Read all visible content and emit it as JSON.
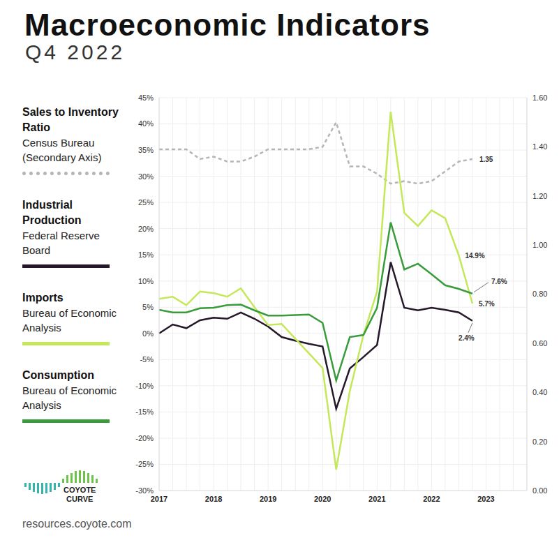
{
  "chart_data": {
    "type": "line",
    "title": "Macroeconomic Indicators",
    "subtitle": "Q4 2022",
    "categories": [
      "2017",
      null,
      null,
      null,
      "2018",
      null,
      null,
      null,
      "2019",
      null,
      null,
      null,
      "2020",
      null,
      null,
      null,
      "2021",
      null,
      null,
      null,
      "2022",
      null,
      null,
      null,
      "2023",
      null,
      null,
      null
    ],
    "ylim": [
      -30,
      45
    ],
    "yticks": [
      {
        "value": -30,
        "label": "-30%"
      },
      {
        "value": -25,
        "label": "-25%"
      },
      {
        "value": -20,
        "label": "-20%"
      },
      {
        "value": -15,
        "label": "-15%"
      },
      {
        "value": -10,
        "label": "-10%"
      },
      {
        "value": -5,
        "label": "-5%"
      },
      {
        "value": 0,
        "label": "0%"
      },
      {
        "value": 5,
        "label": "5%"
      },
      {
        "value": 10,
        "label": "10%"
      },
      {
        "value": 15,
        "label": "15%"
      },
      {
        "value": 20,
        "label": "20%"
      },
      {
        "value": 25,
        "label": "25%"
      },
      {
        "value": 30,
        "label": "30%"
      },
      {
        "value": 35,
        "label": "35%"
      },
      {
        "value": 40,
        "label": "40%"
      },
      {
        "value": 45,
        "label": "45%"
      }
    ],
    "y2lim": [
      0,
      1.6
    ],
    "y2ticks": [
      {
        "value": 0,
        "label": "0.00"
      },
      {
        "value": 0.2,
        "label": "0.20"
      },
      {
        "value": 0.4,
        "label": "0.40"
      },
      {
        "value": 0.6,
        "label": "0.60"
      },
      {
        "value": 0.8,
        "label": "0.80"
      },
      {
        "value": 1,
        "label": "1.00"
      },
      {
        "value": 1.2,
        "label": "1.20"
      },
      {
        "value": 1.4,
        "label": "1.40"
      },
      {
        "value": 1.6,
        "label": "1.60"
      }
    ],
    "grid": true,
    "series": [
      {
        "name": "Sales to Inventory Ratio",
        "source": "Census Bureau (Secondary Axis)",
        "color": "#b5b5b5",
        "axis": "y2",
        "line_style": "dashed",
        "values": [
          1.39,
          1.39,
          1.39,
          1.35,
          1.36,
          1.34,
          1.34,
          1.36,
          1.39,
          1.39,
          1.39,
          1.39,
          1.4,
          1.5,
          1.32,
          1.32,
          1.29,
          1.25,
          1.26,
          1.25,
          1.26,
          1.3,
          1.34,
          1.35,
          null,
          null,
          null,
          null
        ],
        "value_labels": [
          null,
          null,
          null,
          null,
          null,
          null,
          null,
          null,
          null,
          null,
          null,
          null,
          null,
          null,
          null,
          null,
          null,
          null,
          null,
          null,
          null,
          null,
          null,
          "1.35",
          null,
          null,
          null,
          null
        ]
      },
      {
        "name": "Industrial Production",
        "source": "Federal Reserve Board",
        "color": "#24182a",
        "line_style": "solid",
        "values": [
          0.0,
          1.7,
          1.0,
          2.5,
          3.0,
          2.8,
          4.0,
          2.8,
          1.3,
          -0.7,
          -1.4,
          -2.0,
          -2.5,
          -14.4,
          -6.7,
          -4.5,
          -2.2,
          13.6,
          4.9,
          4.4,
          4.9,
          4.5,
          4.0,
          2.4,
          null,
          null,
          null,
          null
        ],
        "value_labels": [
          null,
          null,
          null,
          null,
          null,
          null,
          null,
          null,
          null,
          null,
          null,
          null,
          null,
          null,
          null,
          null,
          null,
          null,
          null,
          null,
          null,
          null,
          null,
          "2.4%",
          null,
          null,
          null,
          null
        ]
      },
      {
        "name": "Imports",
        "source": "Bureau of Economic Analysis",
        "color": "#c5e85a",
        "line_style": "solid",
        "values": [
          6.6,
          7.0,
          5.4,
          8.0,
          7.7,
          7.0,
          8.6,
          5.0,
          1.6,
          1.8,
          -1.0,
          -3.8,
          -6.6,
          -26.0,
          -11.0,
          -0.3,
          8.0,
          42.3,
          23.0,
          20.5,
          23.5,
          22.0,
          14.9,
          5.7,
          null,
          null,
          null,
          null
        ],
        "value_labels": [
          null,
          null,
          null,
          null,
          null,
          null,
          null,
          null,
          null,
          null,
          null,
          null,
          null,
          null,
          null,
          null,
          null,
          null,
          null,
          null,
          null,
          null,
          "14.9%",
          "5.7%",
          null,
          null,
          null,
          null
        ]
      },
      {
        "name": "Consumption",
        "source": "Bureau of Economic Analysis",
        "color": "#3a9b3c",
        "line_style": "solid",
        "values": [
          4.5,
          4.0,
          4.0,
          4.8,
          4.9,
          5.4,
          5.5,
          4.4,
          3.4,
          3.4,
          3.5,
          3.6,
          2.0,
          -9.0,
          -0.7,
          -0.3,
          4.9,
          21.2,
          12.2,
          13.3,
          11.3,
          9.2,
          8.5,
          7.6,
          null,
          null,
          null,
          null
        ],
        "value_labels": [
          null,
          null,
          null,
          null,
          null,
          null,
          null,
          null,
          null,
          null,
          null,
          null,
          null,
          null,
          null,
          null,
          null,
          null,
          null,
          null,
          null,
          null,
          null,
          "7.6%",
          null,
          null,
          null,
          null
        ]
      }
    ]
  },
  "logo": [
    "COYOTE",
    "CURVE"
  ],
  "footer": "resources.coyote.com"
}
